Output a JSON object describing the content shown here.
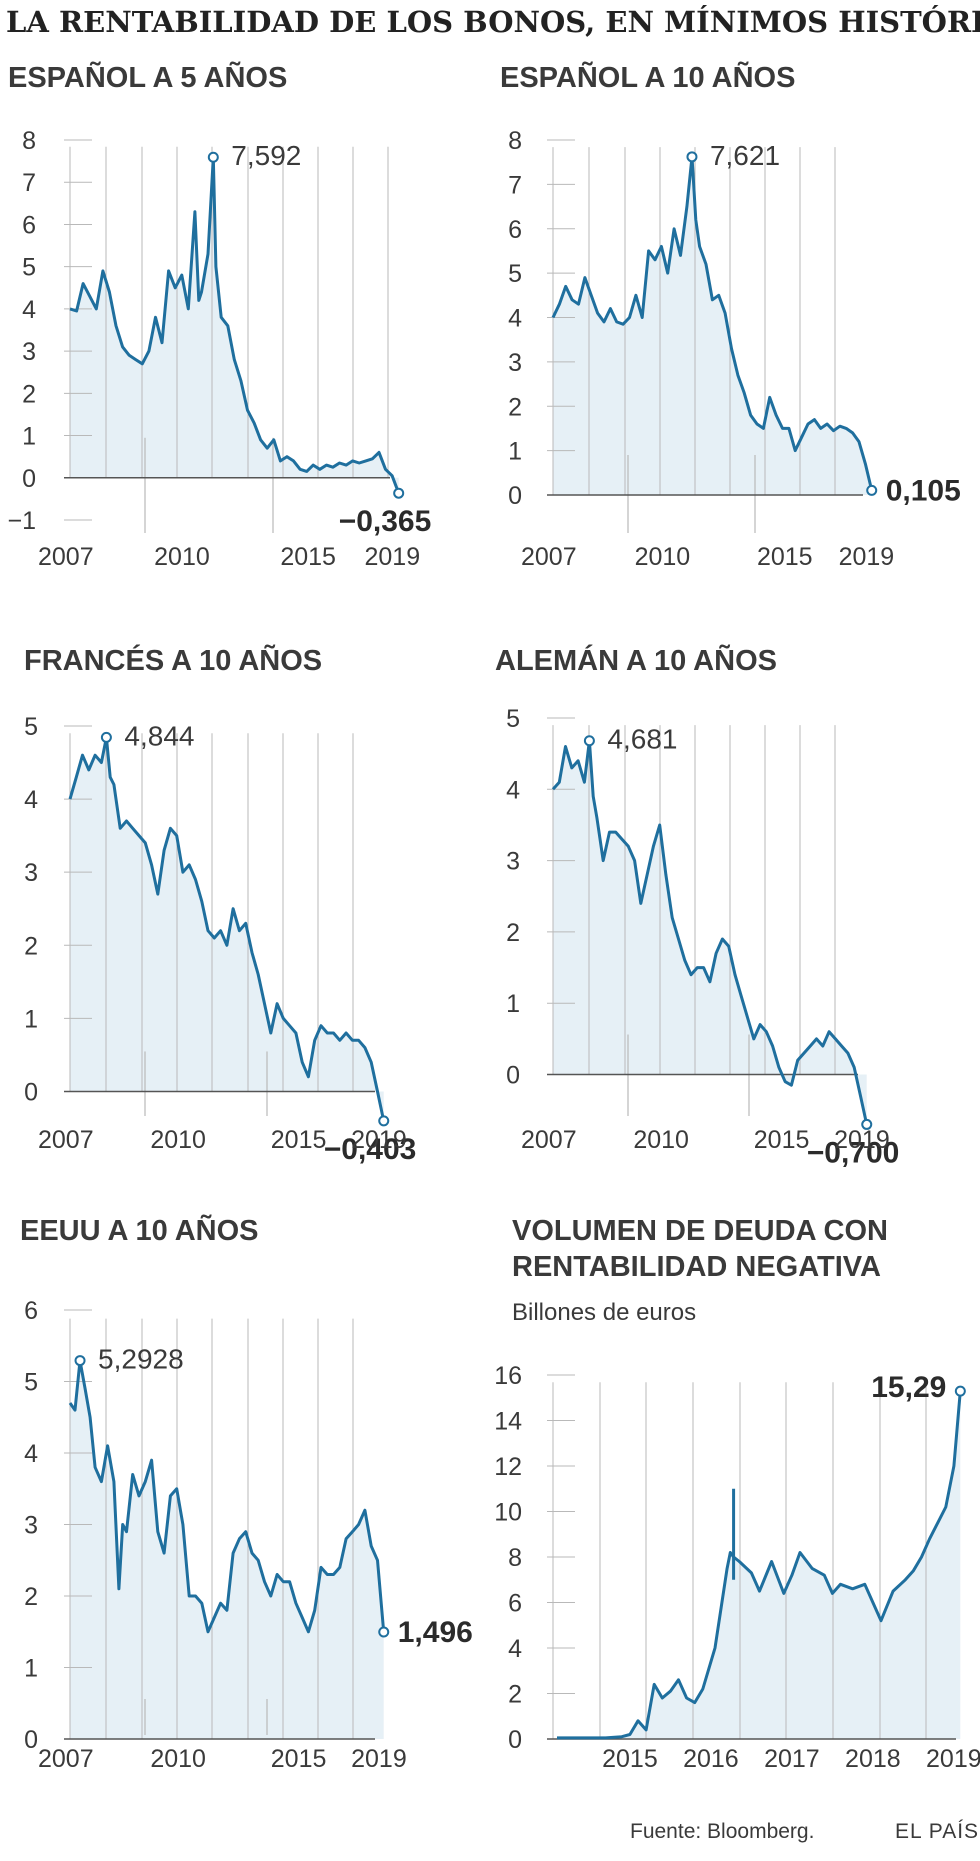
{
  "header": {
    "title": "LA RENTABILIDAD DE LOS BONOS, EN MÍNIMOS HISTÓRICOS"
  },
  "footer": {
    "source": "Fuente: Bloomberg.",
    "brand": "EL PAÍS"
  },
  "colors": {
    "line": "#1f6f9e",
    "area": "#e6f0f6",
    "grid": "#b9b9b9",
    "axis": "#555555",
    "text": "#3a3a3a"
  },
  "chart_data": [
    {
      "id": "es5",
      "type": "area",
      "title": "ESPAÑOL A 5 AÑOS",
      "subtitle": "",
      "ylim": [
        -1,
        8
      ],
      "yticks": [
        -1,
        0,
        1,
        2,
        3,
        4,
        5,
        6,
        7,
        8
      ],
      "ytick_labels": [
        "−1",
        "0",
        "1",
        "2",
        "3",
        "4",
        "5",
        "6",
        "7",
        "8"
      ],
      "xlim": [
        2007.0,
        2019.55
      ],
      "xtick_labels": [
        "2007",
        "2010",
        "2015",
        "2019"
      ],
      "x": [
        2007.0,
        2007.25,
        2007.5,
        2007.75,
        2008.0,
        2008.25,
        2008.5,
        2008.75,
        2009.0,
        2009.25,
        2009.5,
        2009.75,
        2010.0,
        2010.25,
        2010.5,
        2010.75,
        2011.0,
        2011.25,
        2011.5,
        2011.75,
        2011.9,
        2012.0,
        2012.25,
        2012.45,
        2012.55,
        2012.75,
        2013.0,
        2013.25,
        2013.5,
        2013.75,
        2014.0,
        2014.25,
        2014.5,
        2014.75,
        2015.0,
        2015.25,
        2015.5,
        2015.75,
        2016.0,
        2016.25,
        2016.5,
        2016.75,
        2017.0,
        2017.25,
        2017.5,
        2017.75,
        2018.0,
        2018.25,
        2018.5,
        2018.75,
        2019.0,
        2019.25,
        2019.5
      ],
      "y": [
        4.0,
        3.95,
        4.6,
        4.3,
        4.0,
        4.9,
        4.4,
        3.6,
        3.1,
        2.9,
        2.8,
        2.7,
        3.0,
        3.8,
        3.2,
        4.9,
        4.5,
        4.8,
        4.0,
        6.3,
        4.2,
        4.4,
        5.3,
        7.59,
        5.0,
        3.8,
        3.6,
        2.8,
        2.3,
        1.6,
        1.3,
        0.9,
        0.7,
        0.9,
        0.4,
        0.5,
        0.4,
        0.2,
        0.15,
        0.3,
        0.2,
        0.3,
        0.25,
        0.35,
        0.3,
        0.4,
        0.35,
        0.4,
        0.45,
        0.6,
        0.2,
        0.05,
        -0.365
      ],
      "annotations": [
        {
          "label": "7,592",
          "x": 2012.45,
          "y": 7.592,
          "style": "normal"
        },
        {
          "label": "−0,365",
          "x": 2019.5,
          "y": -0.365,
          "style": "bold"
        }
      ]
    },
    {
      "id": "es10",
      "type": "area",
      "title": "ESPAÑOL A 10 AÑOS",
      "subtitle": "",
      "ylim": [
        0,
        8
      ],
      "yticks": [
        0,
        1,
        2,
        3,
        4,
        5,
        6,
        7,
        8
      ],
      "ytick_labels": [
        "0",
        "1",
        "2",
        "3",
        "4",
        "5",
        "6",
        "7",
        "8"
      ],
      "xlim": [
        2007.0,
        2019.55
      ],
      "xtick_labels": [
        "2007",
        "2010",
        "2015",
        "2019"
      ],
      "x": [
        2007.0,
        2007.25,
        2007.5,
        2007.75,
        2008.0,
        2008.25,
        2008.5,
        2008.75,
        2009.0,
        2009.25,
        2009.5,
        2009.75,
        2010.0,
        2010.25,
        2010.5,
        2010.75,
        2011.0,
        2011.25,
        2011.5,
        2011.75,
        2012.0,
        2012.25,
        2012.45,
        2012.6,
        2012.75,
        2013.0,
        2013.25,
        2013.5,
        2013.75,
        2014.0,
        2014.25,
        2014.5,
        2014.75,
        2015.0,
        2015.25,
        2015.5,
        2015.75,
        2016.0,
        2016.25,
        2016.5,
        2016.75,
        2017.0,
        2017.25,
        2017.5,
        2017.75,
        2018.0,
        2018.25,
        2018.5,
        2018.75,
        2019.0,
        2019.25,
        2019.5
      ],
      "y": [
        4.0,
        4.3,
        4.7,
        4.4,
        4.3,
        4.9,
        4.5,
        4.1,
        3.9,
        4.2,
        3.9,
        3.85,
        4.0,
        4.5,
        4.0,
        5.5,
        5.3,
        5.6,
        5.0,
        6.0,
        5.4,
        6.5,
        7.621,
        6.2,
        5.6,
        5.2,
        4.4,
        4.5,
        4.1,
        3.3,
        2.7,
        2.3,
        1.8,
        1.6,
        1.5,
        2.2,
        1.8,
        1.5,
        1.5,
        1.0,
        1.3,
        1.6,
        1.7,
        1.5,
        1.6,
        1.45,
        1.55,
        1.5,
        1.4,
        1.2,
        0.7,
        0.105
      ],
      "annotations": [
        {
          "label": "7,621",
          "x": 2012.45,
          "y": 7.621,
          "style": "normal"
        },
        {
          "label": "0,105",
          "x": 2019.5,
          "y": 0.105,
          "style": "bold"
        }
      ]
    },
    {
      "id": "fr10",
      "type": "area",
      "title": "FRANCÉS A 10 AÑOS",
      "subtitle": "",
      "ylim": [
        -0.5,
        5
      ],
      "yticks": [
        0,
        1,
        2,
        3,
        4,
        5
      ],
      "ytick_labels": [
        "0",
        "1",
        "2",
        "3",
        "4",
        "5"
      ],
      "xlim": [
        2007.0,
        2019.55
      ],
      "xtick_labels": [
        "2007",
        "2010",
        "2015",
        "2019"
      ],
      "x": [
        2007.0,
        2007.25,
        2007.5,
        2007.75,
        2008.0,
        2008.25,
        2008.45,
        2008.6,
        2008.75,
        2009.0,
        2009.25,
        2009.5,
        2009.75,
        2010.0,
        2010.25,
        2010.5,
        2010.75,
        2011.0,
        2011.25,
        2011.5,
        2011.75,
        2012.0,
        2012.25,
        2012.5,
        2012.75,
        2013.0,
        2013.25,
        2013.5,
        2013.75,
        2014.0,
        2014.25,
        2014.5,
        2014.75,
        2015.0,
        2015.25,
        2015.5,
        2015.75,
        2016.0,
        2016.25,
        2016.5,
        2016.75,
        2017.0,
        2017.25,
        2017.5,
        2017.75,
        2018.0,
        2018.25,
        2018.5,
        2018.75,
        2019.0,
        2019.25,
        2019.5
      ],
      "y": [
        4.0,
        4.3,
        4.6,
        4.4,
        4.6,
        4.5,
        4.844,
        4.3,
        4.2,
        3.6,
        3.7,
        3.6,
        3.5,
        3.4,
        3.1,
        2.7,
        3.3,
        3.6,
        3.5,
        3.0,
        3.1,
        2.9,
        2.6,
        2.2,
        2.1,
        2.2,
        2.0,
        2.5,
        2.2,
        2.3,
        1.9,
        1.6,
        1.2,
        0.8,
        1.2,
        1.0,
        0.9,
        0.8,
        0.4,
        0.2,
        0.7,
        0.9,
        0.8,
        0.8,
        0.7,
        0.8,
        0.7,
        0.7,
        0.6,
        0.4,
        0.0,
        -0.403
      ],
      "annotations": [
        {
          "label": "4,844",
          "x": 2008.45,
          "y": 4.844,
          "style": "normal"
        },
        {
          "label": "−0,403",
          "x": 2019.5,
          "y": -0.403,
          "style": "bold"
        }
      ]
    },
    {
      "id": "de10",
      "type": "area",
      "title": "ALEMÁN A 10 AÑOS",
      "subtitle": "",
      "ylim": [
        -0.75,
        5
      ],
      "yticks": [
        0,
        1,
        2,
        3,
        4,
        5
      ],
      "ytick_labels": [
        "0",
        "1",
        "2",
        "3",
        "4",
        "5"
      ],
      "xlim": [
        2007.0,
        2019.55
      ],
      "xtick_labels": [
        "2007",
        "2010",
        "2015",
        "2019"
      ],
      "x": [
        2007.0,
        2007.25,
        2007.5,
        2007.75,
        2008.0,
        2008.25,
        2008.45,
        2008.6,
        2008.75,
        2009.0,
        2009.25,
        2009.5,
        2009.75,
        2010.0,
        2010.25,
        2010.5,
        2010.75,
        2011.0,
        2011.25,
        2011.5,
        2011.75,
        2012.0,
        2012.25,
        2012.5,
        2012.75,
        2013.0,
        2013.25,
        2013.5,
        2013.75,
        2014.0,
        2014.25,
        2014.5,
        2014.75,
        2015.0,
        2015.25,
        2015.5,
        2015.75,
        2016.0,
        2016.25,
        2016.5,
        2016.75,
        2017.0,
        2017.25,
        2017.5,
        2017.75,
        2018.0,
        2018.25,
        2018.5,
        2018.75,
        2019.0,
        2019.25,
        2019.5
      ],
      "y": [
        4.0,
        4.1,
        4.6,
        4.3,
        4.4,
        4.1,
        4.681,
        3.9,
        3.6,
        3.0,
        3.4,
        3.4,
        3.3,
        3.2,
        3.0,
        2.4,
        2.8,
        3.2,
        3.5,
        2.8,
        2.2,
        1.9,
        1.6,
        1.4,
        1.5,
        1.5,
        1.3,
        1.7,
        1.9,
        1.8,
        1.4,
        1.1,
        0.8,
        0.5,
        0.7,
        0.6,
        0.4,
        0.1,
        -0.1,
        -0.15,
        0.2,
        0.3,
        0.4,
        0.5,
        0.4,
        0.6,
        0.5,
        0.4,
        0.3,
        0.1,
        -0.3,
        -0.7
      ],
      "annotations": [
        {
          "label": "4,681",
          "x": 2008.45,
          "y": 4.681,
          "style": "normal"
        },
        {
          "label": "−0,700",
          "x": 2019.5,
          "y": -0.7,
          "style": "bold"
        }
      ]
    },
    {
      "id": "us10",
      "type": "area",
      "title": "EEUU A 10 AÑOS",
      "subtitle": "",
      "ylim": [
        0,
        6
      ],
      "yticks": [
        0,
        1,
        2,
        3,
        4,
        5,
        6
      ],
      "ytick_labels": [
        "0",
        "1",
        "2",
        "3",
        "4",
        "5",
        "6"
      ],
      "xlim": [
        2007.0,
        2019.55
      ],
      "xtick_labels": [
        "2007",
        "2010",
        "2015",
        "2019"
      ],
      "x": [
        2007.0,
        2007.2,
        2007.4,
        2007.6,
        2007.8,
        2008.0,
        2008.25,
        2008.5,
        2008.75,
        2008.95,
        2009.1,
        2009.25,
        2009.5,
        2009.75,
        2010.0,
        2010.25,
        2010.5,
        2010.75,
        2011.0,
        2011.25,
        2011.5,
        2011.75,
        2012.0,
        2012.25,
        2012.5,
        2012.75,
        2013.0,
        2013.25,
        2013.5,
        2013.75,
        2014.0,
        2014.25,
        2014.5,
        2014.75,
        2015.0,
        2015.25,
        2015.5,
        2015.75,
        2016.0,
        2016.25,
        2016.5,
        2016.75,
        2017.0,
        2017.25,
        2017.5,
        2017.75,
        2018.0,
        2018.25,
        2018.5,
        2018.75,
        2019.0,
        2019.25,
        2019.5
      ],
      "y": [
        4.7,
        4.6,
        5.2928,
        4.9,
        4.5,
        3.8,
        3.6,
        4.1,
        3.6,
        2.1,
        3.0,
        2.9,
        3.7,
        3.4,
        3.6,
        3.9,
        2.9,
        2.6,
        3.4,
        3.5,
        3.0,
        2.0,
        2.0,
        1.9,
        1.5,
        1.7,
        1.9,
        1.8,
        2.6,
        2.8,
        2.9,
        2.6,
        2.5,
        2.2,
        2.0,
        2.3,
        2.2,
        2.2,
        1.9,
        1.7,
        1.5,
        1.8,
        2.4,
        2.3,
        2.3,
        2.4,
        2.8,
        2.9,
        3.0,
        3.2,
        2.7,
        2.5,
        1.496
      ],
      "annotations": [
        {
          "label": "5,2928",
          "x": 2007.4,
          "y": 5.2928,
          "style": "normal"
        },
        {
          "label": "1,496",
          "x": 2019.5,
          "y": 1.496,
          "style": "bold"
        }
      ]
    },
    {
      "id": "neg",
      "type": "area",
      "title": "VOLUMEN DE DEUDA CON RENTABILIDAD NEGATIVA",
      "title_lines": [
        "VOLUMEN DE DEUDA CON",
        "RENTABILIDAD NEGATIVA"
      ],
      "subtitle": "Billones de euros",
      "ylim": [
        0,
        16
      ],
      "yticks": [
        0,
        2,
        4,
        6,
        8,
        10,
        12,
        14,
        16
      ],
      "ytick_labels": [
        "0",
        "2",
        "4",
        "6",
        "8",
        "10",
        "12",
        "14",
        "16"
      ],
      "xlim": [
        2014.55,
        2019.65
      ],
      "xtick_labels": [
        "2015",
        "2016",
        "2017",
        "2018",
        "2019"
      ],
      "x": [
        2014.6,
        2014.8,
        2015.0,
        2015.2,
        2015.4,
        2015.5,
        2015.6,
        2015.7,
        2015.8,
        2015.9,
        2016.0,
        2016.1,
        2016.2,
        2016.3,
        2016.4,
        2016.55,
        2016.7,
        2016.74,
        2016.78,
        2016.85,
        2017.0,
        2017.1,
        2017.25,
        2017.4,
        2017.5,
        2017.6,
        2017.75,
        2017.9,
        2018.0,
        2018.1,
        2018.25,
        2018.4,
        2018.5,
        2018.6,
        2018.75,
        2018.9,
        2019.0,
        2019.1,
        2019.2,
        2019.3,
        2019.4,
        2019.5,
        2019.58
      ],
      "y": [
        0.05,
        0.05,
        0.05,
        0.05,
        0.1,
        0.2,
        0.8,
        0.4,
        2.4,
        1.8,
        2.1,
        2.6,
        1.8,
        1.6,
        2.2,
        4.0,
        7.5,
        8.2,
        8.0,
        7.8,
        7.3,
        6.5,
        7.8,
        6.4,
        7.2,
        8.2,
        7.5,
        7.2,
        6.4,
        6.8,
        6.6,
        6.8,
        6.0,
        5.2,
        6.5,
        7.0,
        7.4,
        8.0,
        8.8,
        9.5,
        10.2,
        12.0,
        15.29
      ],
      "spike": {
        "x": 2016.78,
        "y": 11.0
      },
      "annotations": [
        {
          "label": "15,29",
          "x": 2019.58,
          "y": 15.29,
          "style": "bold"
        }
      ]
    }
  ]
}
